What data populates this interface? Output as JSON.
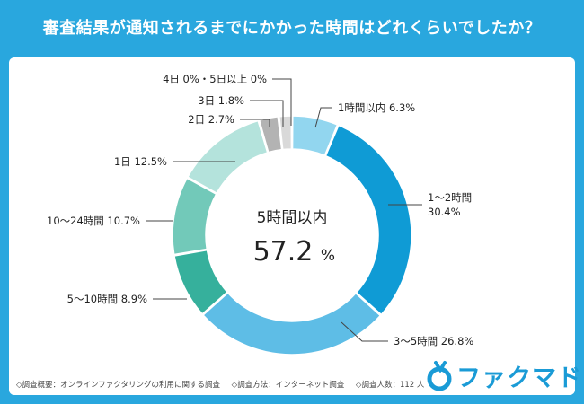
{
  "title": "審査結果が通知されるまでにかかった時間はどれくらいでしたか？",
  "chart_data": {
    "type": "pie",
    "style": "donut",
    "title": "審査結果が通知されるまでにかかった時間はどれくらいでしたか？",
    "unit": "%",
    "slices": [
      {
        "label": "1時間以内",
        "value": 6.3,
        "display": "1時間以内 6.3%",
        "color": "#92d6ef"
      },
      {
        "label": "1〜2時間",
        "value": 30.4,
        "display_line1": "1〜2時間",
        "display_line2": "30.4%",
        "color": "#0f9bd5"
      },
      {
        "label": "3〜5時間",
        "value": 26.8,
        "display": "3〜5時間 26.8%",
        "color": "#5ebde6"
      },
      {
        "label": "5〜10時間",
        "value": 8.9,
        "display": "5〜10時間 8.9%",
        "color": "#36b09c"
      },
      {
        "label": "10〜24時間",
        "value": 10.7,
        "display": "10〜24時間 10.7%",
        "color": "#72c9b9"
      },
      {
        "label": "1日",
        "value": 12.5,
        "display": "1日 12.5%",
        "color": "#b4e3dc"
      },
      {
        "label": "2日",
        "value": 2.7,
        "display": "2日 2.7%",
        "color": "#b3b3b3"
      },
      {
        "label": "3日",
        "value": 1.8,
        "display": "3日 1.8%",
        "color": "#d9d9d9"
      },
      {
        "label": "4日",
        "value": 0,
        "color": "#d9d9d9"
      },
      {
        "label": "5日以上",
        "value": 0,
        "color": "#d9d9d9"
      }
    ],
    "top_label": "4日 0%・5日以上 0%",
    "center_label": "5時間以内",
    "center_value": "57.2",
    "center_unit": "%"
  },
  "footer": {
    "overview": "◇調査概要：オンラインファクタリングの利用に関する調査",
    "method": "◇調査方法：インターネット調査",
    "respondents": "◇調査人数：112 人"
  },
  "brand": {
    "name": "ファクマド"
  }
}
